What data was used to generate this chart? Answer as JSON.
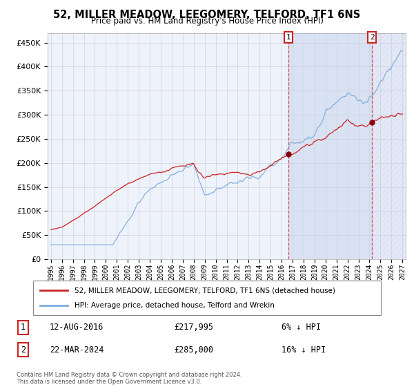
{
  "title": "52, MILLER MEADOW, LEEGOMERY, TELFORD, TF1 6NS",
  "subtitle": "Price paid vs. HM Land Registry's House Price Index (HPI)",
  "legend_line1": "52, MILLER MEADOW, LEEGOMERY, TELFORD, TF1 6NS (detached house)",
  "legend_line2": "HPI: Average price, detached house, Telford and Wrekin",
  "transaction1_date": "12-AUG-2016",
  "transaction1_price": 217995,
  "transaction1_pct": "6%",
  "transaction2_date": "22-MAR-2024",
  "transaction2_price": 285000,
  "transaction2_pct": "16%",
  "hpi_color": "#7aaadd",
  "price_color": "#cc2222",
  "marker_color": "#880000",
  "dashed_line_color": "#cc4444",
  "background_color": "#ffffff",
  "plot_bg_color": "#eef2fa",
  "grid_color": "#ccccdd",
  "footnote": "Contains HM Land Registry data © Crown copyright and database right 2024.\nThis data is licensed under the Open Government Licence v3.0.",
  "xstart_year": 1995,
  "xend_year": 2027,
  "ylim": [
    0,
    470000
  ],
  "yticks": [
    0,
    50000,
    100000,
    150000,
    200000,
    250000,
    300000,
    350000,
    400000,
    450000
  ],
  "sale1_year": 2016.62,
  "sale2_year": 2024.23
}
